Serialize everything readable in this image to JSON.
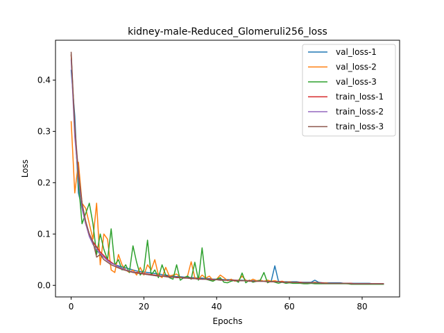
{
  "chart_data": {
    "type": "line",
    "title": "kidney-male-Reduced_Glomeruli256_loss",
    "xlabel": "Epochs",
    "ylabel": "Loss",
    "xlim": [
      -4.3,
      90.3
    ],
    "ylim": [
      -0.0226,
      0.4776
    ],
    "xticks": [
      0,
      20,
      40,
      60,
      80
    ],
    "yticks": [
      0.0,
      0.1,
      0.2,
      0.3,
      0.4
    ],
    "ytick_labels": [
      "0.0",
      "0.1",
      "0.2",
      "0.3",
      "0.4"
    ],
    "legend_position": "top-right",
    "grid": false,
    "series": [
      {
        "name": "val_loss-1",
        "color": "#1f77b4",
        "values": [
          0.42,
          0.33,
          0.18,
          0.15,
          0.12,
          0.1,
          0.08,
          0.07,
          0.06,
          0.055,
          0.05,
          0.045,
          0.04,
          0.038,
          0.036,
          0.034,
          0.032,
          0.03,
          0.028,
          0.027,
          0.026,
          0.025,
          0.024,
          0.023,
          0.022,
          0.021,
          0.02,
          0.019,
          0.018,
          0.017,
          0.017,
          0.016,
          0.016,
          0.015,
          0.015,
          0.014,
          0.014,
          0.013,
          0.013,
          0.012,
          0.012,
          0.012,
          0.011,
          0.011,
          0.011,
          0.01,
          0.01,
          0.01,
          0.009,
          0.009,
          0.009,
          0.009,
          0.008,
          0.008,
          0.008,
          0.008,
          0.038,
          0.008,
          0.007,
          0.007,
          0.007,
          0.007,
          0.007,
          0.006,
          0.006,
          0.006,
          0.006,
          0.01,
          0.006,
          0.005,
          0.005,
          0.005,
          0.005,
          0.005,
          0.005,
          0.004,
          0.004,
          0.004,
          0.004,
          0.004,
          0.004,
          0.004,
          0.004,
          0.003,
          0.003,
          0.003,
          0.003
        ]
      },
      {
        "name": "val_loss-2",
        "color": "#ff7f0e",
        "values": [
          0.32,
          0.18,
          0.24,
          0.16,
          0.15,
          0.12,
          0.09,
          0.16,
          0.04,
          0.1,
          0.09,
          0.03,
          0.025,
          0.06,
          0.04,
          0.03,
          0.025,
          0.03,
          0.02,
          0.035,
          0.02,
          0.04,
          0.03,
          0.05,
          0.02,
          0.015,
          0.035,
          0.018,
          0.02,
          0.022,
          0.016,
          0.014,
          0.018,
          0.046,
          0.015,
          0.012,
          0.02,
          0.014,
          0.018,
          0.01,
          0.012,
          0.02,
          0.015,
          0.009,
          0.012,
          0.008,
          0.01,
          0.018,
          0.01,
          0.008,
          0.012,
          0.009,
          0.01,
          0.008,
          0.01,
          0.008,
          0.009,
          0.007,
          0.008,
          0.006,
          0.007,
          0.006,
          0.005,
          0.006,
          0.005,
          0.005,
          0.005,
          0.006,
          0.005,
          0.004,
          0.005,
          0.004,
          0.004,
          0.004,
          0.004,
          0.004,
          0.003,
          0.003,
          0.003,
          0.003,
          0.003,
          0.003,
          0.003,
          0.003,
          0.003,
          0.003,
          0.003
        ]
      },
      {
        "name": "val_loss-3",
        "color": "#2ca02c",
        "values": [
          0.45,
          0.3,
          0.2,
          0.12,
          0.14,
          0.16,
          0.12,
          0.06,
          0.1,
          0.07,
          0.05,
          0.11,
          0.04,
          0.05,
          0.03,
          0.04,
          0.025,
          0.077,
          0.045,
          0.02,
          0.03,
          0.088,
          0.02,
          0.03,
          0.015,
          0.04,
          0.02,
          0.015,
          0.012,
          0.04,
          0.01,
          0.015,
          0.018,
          0.012,
          0.045,
          0.01,
          0.073,
          0.012,
          0.01,
          0.008,
          0.012,
          0.015,
          0.006,
          0.005,
          0.008,
          0.01,
          0.006,
          0.024,
          0.005,
          0.01,
          0.006,
          0.008,
          0.01,
          0.025,
          0.005,
          0.008,
          0.006,
          0.004,
          0.006,
          0.004,
          0.005,
          0.004,
          0.004,
          0.004,
          0.003,
          0.003,
          0.004,
          0.003,
          0.003,
          0.003,
          0.003,
          0.003,
          0.003,
          0.003,
          0.003,
          0.003,
          0.003,
          0.002,
          0.002,
          0.002,
          0.002,
          0.002,
          0.002,
          0.002,
          0.002,
          0.002,
          0.002
        ]
      },
      {
        "name": "train_loss-1",
        "color": "#d62728",
        "values": [
          0.45,
          0.3,
          0.22,
          0.16,
          0.12,
          0.1,
          0.085,
          0.075,
          0.065,
          0.058,
          0.05,
          0.045,
          0.04,
          0.036,
          0.033,
          0.03,
          0.028,
          0.026,
          0.025,
          0.024,
          0.023,
          0.022,
          0.021,
          0.02,
          0.019,
          0.018,
          0.018,
          0.017,
          0.016,
          0.016,
          0.015,
          0.015,
          0.014,
          0.014,
          0.013,
          0.013,
          0.012,
          0.012,
          0.012,
          0.011,
          0.011,
          0.011,
          0.01,
          0.01,
          0.01,
          0.01,
          0.009,
          0.009,
          0.009,
          0.009,
          0.008,
          0.008,
          0.008,
          0.008,
          0.007,
          0.007,
          0.007,
          0.007,
          0.007,
          0.006,
          0.006,
          0.006,
          0.006,
          0.006,
          0.005,
          0.005,
          0.005,
          0.005,
          0.005,
          0.005,
          0.004,
          0.004,
          0.004,
          0.004,
          0.004,
          0.004,
          0.004,
          0.004,
          0.003,
          0.003,
          0.003,
          0.003,
          0.003,
          0.003,
          0.003,
          0.003,
          0.003
        ]
      },
      {
        "name": "train_loss-2",
        "color": "#9467bd",
        "values": [
          0.44,
          0.29,
          0.21,
          0.15,
          0.12,
          0.095,
          0.08,
          0.07,
          0.062,
          0.055,
          0.048,
          0.043,
          0.04,
          0.036,
          0.033,
          0.03,
          0.028,
          0.026,
          0.024,
          0.023,
          0.022,
          0.021,
          0.02,
          0.019,
          0.018,
          0.018,
          0.017,
          0.016,
          0.016,
          0.015,
          0.015,
          0.014,
          0.014,
          0.013,
          0.013,
          0.012,
          0.012,
          0.012,
          0.011,
          0.011,
          0.011,
          0.01,
          0.01,
          0.01,
          0.01,
          0.009,
          0.009,
          0.009,
          0.009,
          0.008,
          0.008,
          0.008,
          0.008,
          0.008,
          0.007,
          0.007,
          0.007,
          0.007,
          0.006,
          0.006,
          0.006,
          0.006,
          0.006,
          0.005,
          0.005,
          0.005,
          0.005,
          0.005,
          0.005,
          0.004,
          0.004,
          0.004,
          0.004,
          0.004,
          0.004,
          0.004,
          0.004,
          0.003,
          0.003,
          0.003,
          0.003,
          0.003,
          0.003,
          0.003,
          0.003,
          0.003,
          0.003
        ]
      },
      {
        "name": "train_loss-3",
        "color": "#8c564b",
        "values": [
          0.455,
          0.31,
          0.22,
          0.16,
          0.125,
          0.1,
          0.085,
          0.055,
          0.06,
          0.05,
          0.045,
          0.04,
          0.037,
          0.034,
          0.031,
          0.029,
          0.027,
          0.025,
          0.024,
          0.023,
          0.022,
          0.021,
          0.02,
          0.019,
          0.018,
          0.018,
          0.017,
          0.016,
          0.016,
          0.015,
          0.015,
          0.014,
          0.014,
          0.013,
          0.013,
          0.012,
          0.012,
          0.012,
          0.011,
          0.011,
          0.011,
          0.01,
          0.01,
          0.01,
          0.01,
          0.009,
          0.009,
          0.009,
          0.009,
          0.008,
          0.008,
          0.008,
          0.008,
          0.008,
          0.007,
          0.007,
          0.007,
          0.007,
          0.006,
          0.006,
          0.006,
          0.006,
          0.006,
          0.005,
          0.005,
          0.005,
          0.005,
          0.005,
          0.005,
          0.004,
          0.004,
          0.004,
          0.004,
          0.004,
          0.004,
          0.004,
          0.004,
          0.003,
          0.003,
          0.003,
          0.003,
          0.003,
          0.003,
          0.003,
          0.003,
          0.003,
          0.003
        ]
      }
    ]
  }
}
